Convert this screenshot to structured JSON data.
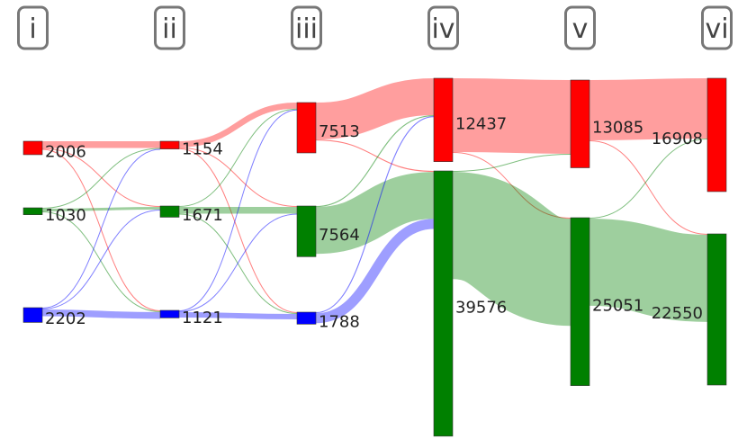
{
  "chart_data": {
    "type": "sankey",
    "stages": [
      "i",
      "ii",
      "iii",
      "iv",
      "v",
      "vi"
    ],
    "nodes": [
      {
        "stage": 0,
        "color": "#ff0000",
        "value": 2006
      },
      {
        "stage": 0,
        "color": "#008000",
        "value": 1030
      },
      {
        "stage": 0,
        "color": "#0000ff",
        "value": 2202
      },
      {
        "stage": 1,
        "color": "#ff0000",
        "value": 1154
      },
      {
        "stage": 1,
        "color": "#008000",
        "value": 1671
      },
      {
        "stage": 1,
        "color": "#0000ff",
        "value": 1121
      },
      {
        "stage": 2,
        "color": "#ff0000",
        "value": 7513
      },
      {
        "stage": 2,
        "color": "#008000",
        "value": 7564
      },
      {
        "stage": 2,
        "color": "#0000ff",
        "value": 1788
      },
      {
        "stage": 3,
        "color": "#ff0000",
        "value": 12437
      },
      {
        "stage": 3,
        "color": "#008000",
        "value": 39576
      },
      {
        "stage": 4,
        "color": "#ff0000",
        "value": 13085
      },
      {
        "stage": 4,
        "color": "#008000",
        "value": 25051
      },
      {
        "stage": 5,
        "color": "#ff0000",
        "value": 16908
      },
      {
        "stage": 5,
        "color": "#008000",
        "value": 22550
      }
    ],
    "links": [
      {
        "source": 0,
        "target": 3,
        "value": 1000
      },
      {
        "source": 0,
        "target": 4,
        "value": 100
      },
      {
        "source": 0,
        "target": 5,
        "value": 100
      },
      {
        "source": 1,
        "target": 3,
        "value": 100
      },
      {
        "source": 1,
        "target": 4,
        "value": 400
      },
      {
        "source": 1,
        "target": 5,
        "value": 100
      },
      {
        "source": 2,
        "target": 3,
        "value": 100
      },
      {
        "source": 2,
        "target": 4,
        "value": 100
      },
      {
        "source": 2,
        "target": 5,
        "value": 1000
      },
      {
        "source": 3,
        "target": 6,
        "value": 900
      },
      {
        "source": 3,
        "target": 7,
        "value": 100
      },
      {
        "source": 3,
        "target": 8,
        "value": 100
      },
      {
        "source": 4,
        "target": 6,
        "value": 100
      },
      {
        "source": 4,
        "target": 7,
        "value": 1000
      },
      {
        "source": 4,
        "target": 8,
        "value": 100
      },
      {
        "source": 5,
        "target": 6,
        "value": 100
      },
      {
        "source": 5,
        "target": 7,
        "value": 100
      },
      {
        "source": 5,
        "target": 8,
        "value": 800
      },
      {
        "source": 6,
        "target": 9,
        "value": 5500
      },
      {
        "source": 6,
        "target": 10,
        "value": 150
      },
      {
        "source": 7,
        "target": 9,
        "value": 150
      },
      {
        "source": 7,
        "target": 10,
        "value": 7000
      },
      {
        "source": 8,
        "target": 9,
        "value": 150
      },
      {
        "source": 8,
        "target": 10,
        "value": 1500
      },
      {
        "source": 9,
        "target": 11,
        "value": 11000
      },
      {
        "source": 9,
        "target": 12,
        "value": 100
      },
      {
        "source": 10,
        "target": 11,
        "value": 100
      },
      {
        "source": 10,
        "target": 12,
        "value": 16000
      },
      {
        "source": 11,
        "target": 13,
        "value": 9000
      },
      {
        "source": 11,
        "target": 14,
        "value": 100
      },
      {
        "source": 12,
        "target": 13,
        "value": 100
      },
      {
        "source": 12,
        "target": 14,
        "value": 13000
      }
    ]
  }
}
